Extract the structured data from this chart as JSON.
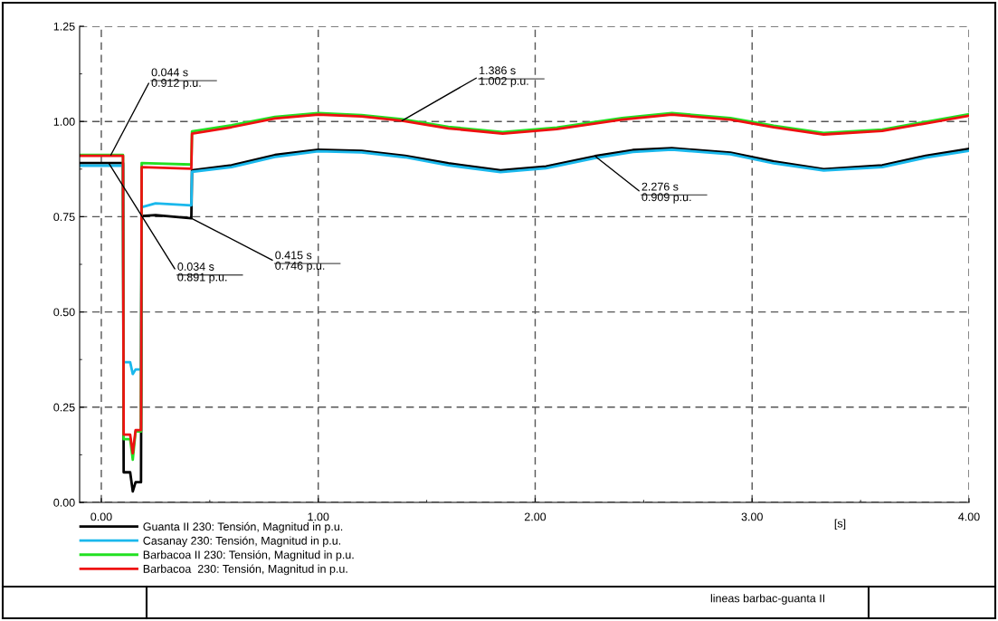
{
  "chart_data": {
    "type": "line",
    "xlabel": "[s]",
    "xlim": [
      -0.1,
      4.0
    ],
    "ylim": [
      0,
      1.25
    ],
    "xticks": [
      {
        "value": 0,
        "label": "0.00"
      },
      {
        "value": 0.5,
        "label": null
      },
      {
        "value": 1,
        "label": "1.00"
      },
      {
        "value": 1.5,
        "label": null
      },
      {
        "value": 2,
        "label": "2.00"
      },
      {
        "value": 2.5,
        "label": null
      },
      {
        "value": 3,
        "label": "3.00"
      },
      {
        "value": 3.5,
        "label": null
      },
      {
        "value": 4,
        "label": "4.00"
      }
    ],
    "yticks": [
      {
        "value": 0,
        "label": "0.00"
      },
      {
        "value": 0.125,
        "label": null
      },
      {
        "value": 0.25,
        "label": "0.25"
      },
      {
        "value": 0.375,
        "label": null
      },
      {
        "value": 0.5,
        "label": "0.50"
      },
      {
        "value": 0.625,
        "label": null
      },
      {
        "value": 0.75,
        "label": "0.75"
      },
      {
        "value": 0.875,
        "label": null
      },
      {
        "value": 1.0,
        "label": "1.00"
      },
      {
        "value": 1.125,
        "label": null
      },
      {
        "value": 1.25,
        "label": "1.25"
      }
    ],
    "grid": true,
    "legend": "bottom left",
    "line_style": "solid",
    "marker": "none",
    "series": [
      {
        "name": "Guanta II 230: Tensión, Magnitud in p.u.",
        "color": "#000000",
        "x": [
          -0.1,
          0.1,
          0.103,
          0.133,
          0.145,
          0.158,
          0.183,
          0.186,
          0.25,
          0.415,
          0.418,
          0.6,
          0.8,
          1.0,
          1.2,
          1.4,
          1.6,
          1.84,
          2.05,
          2.276,
          2.45,
          2.63,
          2.9,
          3.1,
          3.33,
          3.6,
          3.8,
          4.0
        ],
        "values": [
          0.891,
          0.891,
          0.079,
          0.079,
          0.029,
          0.053,
          0.053,
          0.752,
          0.754,
          0.746,
          0.872,
          0.885,
          0.912,
          0.926,
          0.923,
          0.91,
          0.89,
          0.872,
          0.882,
          0.909,
          0.925,
          0.93,
          0.918,
          0.895,
          0.875,
          0.885,
          0.91,
          0.928
        ]
      },
      {
        "name": "Casanay 230: Tensión, Magnitud in p.u.",
        "color": "#1ab8ec",
        "x": [
          -0.1,
          0.1,
          0.103,
          0.133,
          0.145,
          0.158,
          0.183,
          0.186,
          0.25,
          0.415,
          0.418,
          0.6,
          0.8,
          1.0,
          1.2,
          1.4,
          1.6,
          1.84,
          2.05,
          2.276,
          2.45,
          2.63,
          2.9,
          3.1,
          3.33,
          3.6,
          3.8,
          4.0
        ],
        "values": [
          0.884,
          0.884,
          0.368,
          0.368,
          0.337,
          0.349,
          0.349,
          0.775,
          0.785,
          0.78,
          0.868,
          0.88,
          0.907,
          0.922,
          0.919,
          0.906,
          0.885,
          0.867,
          0.877,
          0.904,
          0.92,
          0.926,
          0.914,
          0.89,
          0.871,
          0.88,
          0.905,
          0.923
        ]
      },
      {
        "name": "Barbacoa II 230: Tensión, Magnitud in p.u.",
        "color": "#22e022",
        "x": [
          -0.1,
          0.1,
          0.103,
          0.133,
          0.145,
          0.158,
          0.183,
          0.186,
          0.415,
          0.418,
          0.6,
          0.8,
          1.0,
          1.2,
          1.386,
          1.6,
          1.85,
          2.1,
          2.4,
          2.63,
          2.9,
          3.1,
          3.33,
          3.6,
          3.8,
          4.0
        ],
        "values": [
          0.912,
          0.912,
          0.166,
          0.166,
          0.112,
          0.186,
          0.186,
          0.891,
          0.887,
          0.974,
          0.99,
          1.012,
          1.022,
          1.017,
          1.006,
          0.986,
          0.972,
          0.984,
          1.009,
          1.022,
          1.009,
          0.989,
          0.97,
          0.979,
          0.999,
          1.019
        ]
      },
      {
        "name": "Barbacoa  230: Tensión, Magnitud in p.u.",
        "color": "#ee1111",
        "x": [
          -0.1,
          0.1,
          0.103,
          0.133,
          0.145,
          0.158,
          0.183,
          0.186,
          0.415,
          0.418,
          0.6,
          0.8,
          1.0,
          1.2,
          1.386,
          1.6,
          1.85,
          2.1,
          2.4,
          2.63,
          2.9,
          3.1,
          3.33,
          3.6,
          3.8,
          4.0
        ],
        "values": [
          0.91,
          0.91,
          0.178,
          0.178,
          0.129,
          0.19,
          0.19,
          0.88,
          0.876,
          0.968,
          0.985,
          1.008,
          1.018,
          1.013,
          1.002,
          0.982,
          0.968,
          0.98,
          1.005,
          1.018,
          1.005,
          0.985,
          0.966,
          0.975,
          0.995,
          1.015
        ]
      }
    ],
    "annotations": [
      {
        "text": "0.044 s\n0.912 p.u.",
        "x": 0.044,
        "y": 0.912
      },
      {
        "text": "0.034 s\n0.891 p.u.",
        "x": 0.034,
        "y": 0.891
      },
      {
        "text": "0.415 s\n0.746 p.u.",
        "x": 0.415,
        "y": 0.746
      },
      {
        "text": "1.386 s\n1.002 p.u.",
        "x": 1.386,
        "y": 1.002
      },
      {
        "text": "2.276 s\n0.909 p.u.",
        "x": 2.276,
        "y": 0.909
      },
      "lineas barbac-guanta II"
    ]
  }
}
